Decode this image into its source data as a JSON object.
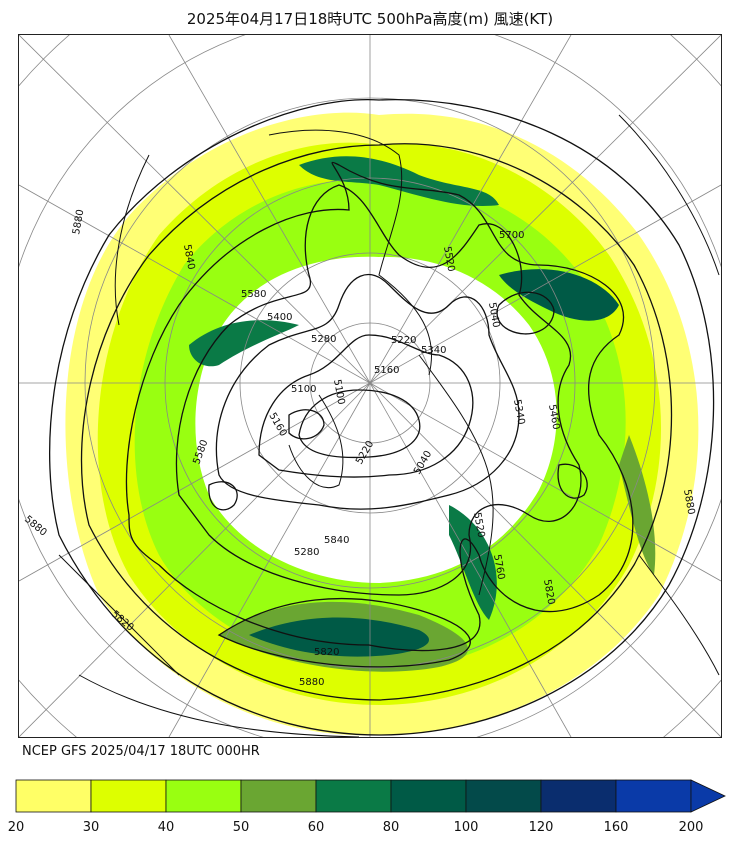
{
  "title": "2025年04月17日18時UTC 500hPa高度(m) 風速(KT)",
  "footer": "NCEP GFS 2025/04/17 18UTC 000HR",
  "contour_labels": [
    "5880",
    "5840",
    "5580",
    "5400",
    "5280",
    "5100",
    "5700",
    "5520",
    "5220",
    "5340",
    "5160",
    "5040",
    "5100",
    "5220",
    "5340",
    "5460",
    "5880",
    "5820",
    "5760",
    "5520",
    "5280",
    "5840",
    "5820",
    "5880",
    "5880",
    "5820",
    "5580",
    "5160",
    "5040"
  ],
  "colorbar": {
    "unit": "KT",
    "bins": [
      {
        "from": 20,
        "to": 30,
        "color": "#ffff66"
      },
      {
        "from": 30,
        "to": 40,
        "color": "#ddff00"
      },
      {
        "from": 40,
        "to": 50,
        "color": "#99ff11"
      },
      {
        "from": 50,
        "to": 60,
        "color": "#6aa632"
      },
      {
        "from": 60,
        "to": 80,
        "color": "#0a7a46"
      },
      {
        "from": 80,
        "to": 100,
        "color": "#005a46"
      },
      {
        "from": 100,
        "to": 120,
        "color": "#034a4a"
      },
      {
        "from": 120,
        "to": 160,
        "color": "#0a2d6e"
      },
      {
        "from": 160,
        "to": 200,
        "color": "#0a3aa8"
      }
    ],
    "tick_labels": [
      "20",
      "30",
      "40",
      "50",
      "60",
      "80",
      "100",
      "120",
      "160",
      "200"
    ],
    "extend": "max"
  }
}
